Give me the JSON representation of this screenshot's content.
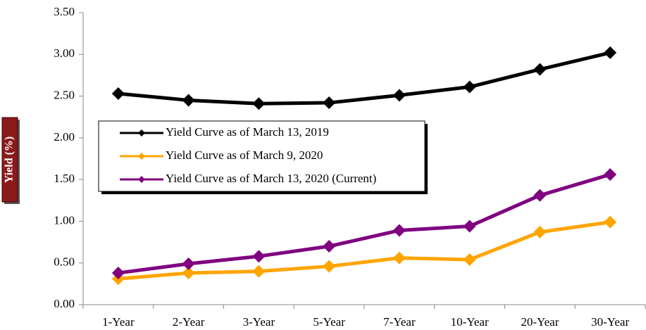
{
  "chart_data": {
    "type": "line",
    "ylabel": "Yield (%)",
    "categories": [
      "1-Year",
      "2-Year",
      "3-Year",
      "5-Year",
      "7-Year",
      "10-Year",
      "20-Year",
      "30-Year"
    ],
    "series": [
      {
        "name": "Yield Curve as of March 13, 2019",
        "color": "#000000",
        "values": [
          2.53,
          2.45,
          2.41,
          2.42,
          2.51,
          2.61,
          2.82,
          3.02
        ]
      },
      {
        "name": "Yield Curve as of March 9, 2020",
        "color": "#ffa500",
        "values": [
          0.31,
          0.38,
          0.4,
          0.46,
          0.56,
          0.54,
          0.87,
          0.99
        ]
      },
      {
        "name": "Yield Curve as of March 13, 2020 (Current)",
        "color": "#800080",
        "values": [
          0.38,
          0.49,
          0.58,
          0.7,
          0.89,
          0.94,
          1.31,
          1.56
        ]
      }
    ],
    "ylim": [
      0,
      3.5
    ],
    "yticks": [
      {
        "value": 0,
        "label": "0.00"
      },
      {
        "value": 0.5,
        "label": "0.50"
      },
      {
        "value": 1,
        "label": "1.00"
      },
      {
        "value": 1.5,
        "label": "1.50"
      },
      {
        "value": 2,
        "label": "2.00"
      },
      {
        "value": 2.5,
        "label": "2.50"
      },
      {
        "value": 3,
        "label": "3.00"
      },
      {
        "value": 3.5,
        "label": "3.50"
      }
    ],
    "grid": false,
    "legend": "center-left"
  }
}
